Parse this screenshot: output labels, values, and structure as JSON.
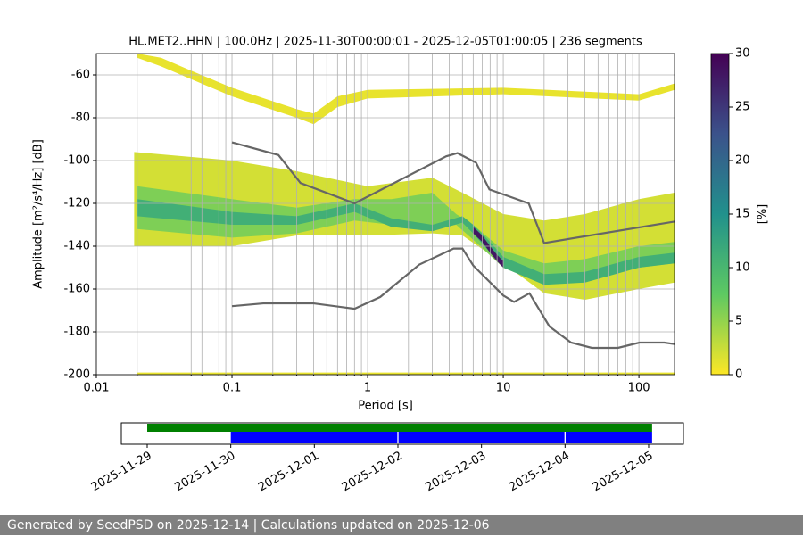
{
  "chart_data": [
    {
      "type": "ppsd",
      "title": "HL.MET2..HHN | 100.0Hz | 2025-11-30T00:00:01 - 2025-12-05T01:00:05 | 236 segments",
      "xlabel": "Period [s]",
      "ylabel": "Amplitude [m²/s⁴/Hz] [dB]",
      "log_x": true,
      "grid": true,
      "xlim": [
        0.01,
        183
      ],
      "ylim": [
        -200,
        -50
      ],
      "xticks": [
        0.01,
        0.1,
        1,
        10,
        100
      ],
      "xminorticks": [
        0.02,
        0.03,
        0.04,
        0.05,
        0.06,
        0.07,
        0.08,
        0.09,
        0.2,
        0.3,
        0.4,
        0.5,
        0.6,
        0.7,
        0.8,
        0.9,
        2,
        3,
        4,
        5,
        6,
        7,
        8,
        9,
        20,
        30,
        40,
        50,
        60,
        70,
        80,
        90
      ],
      "yticks": [
        -200,
        -180,
        -160,
        -140,
        -120,
        -100,
        -80,
        -60
      ],
      "colorbar": {
        "label": "[%]",
        "clim": [
          0,
          30
        ],
        "ticks": [
          0,
          5,
          10,
          15,
          20,
          25,
          30
        ],
        "colormap": [
          "#fde725",
          "#5ec962",
          "#21918c",
          "#3b528b",
          "#440154"
        ]
      },
      "bands": [
        {
          "percent": 1,
          "x": [
            0.02,
            0.03,
            0.05,
            0.1,
            0.3,
            0.4,
            0.6,
            1,
            10,
            100,
            183
          ],
          "low": [
            -52,
            -56,
            -62,
            -70,
            -80,
            -83,
            -75,
            -71,
            -69,
            -72,
            -67
          ],
          "high": [
            -50,
            -52,
            -58,
            -66,
            -76,
            -78,
            -70,
            -67,
            -66,
            -69,
            -64
          ]
        },
        {
          "percent": 1,
          "x": [
            0.02,
            183
          ],
          "low": [
            -200,
            -200
          ],
          "high": [
            -199,
            -199
          ]
        },
        {
          "percent": 2,
          "x": [
            0.019,
            0.1,
            0.3,
            1,
            3,
            5,
            10,
            20,
            40,
            100,
            183
          ],
          "low": [
            -140,
            -140,
            -135,
            -135,
            -134,
            -135,
            -148,
            -162,
            -165,
            -160,
            -157
          ],
          "high": [
            -96,
            -100,
            -105,
            -112,
            -108,
            -115,
            -125,
            -128,
            -125,
            -118,
            -115
          ]
        },
        {
          "percent": 6,
          "x": [
            0.02,
            0.1,
            0.3,
            0.8,
            1.5,
            3,
            4.5,
            6,
            10,
            20,
            40,
            100,
            183
          ],
          "low": [
            -132,
            -136,
            -134,
            -128,
            -130,
            -132,
            -130,
            -137,
            -150,
            -158,
            -156,
            -150,
            -148
          ],
          "high": [
            -112,
            -118,
            -122,
            -118,
            -118,
            -115,
            -125,
            -130,
            -142,
            -148,
            -146,
            -140,
            -138
          ]
        },
        {
          "percent": 11,
          "x": [
            0.02,
            0.1,
            0.3,
            0.8,
            1.5,
            3,
            5,
            6,
            8,
            10,
            20,
            40,
            100,
            183
          ],
          "low": [
            -126,
            -130,
            -130,
            -124,
            -131,
            -133,
            -129,
            -134,
            -143,
            -150,
            -158,
            -157,
            -150,
            -148
          ],
          "high": [
            -118,
            -124,
            -126,
            -120,
            -127,
            -130,
            -126,
            -130,
            -138,
            -145,
            -153,
            -152,
            -145,
            -143
          ]
        },
        {
          "percent": 28,
          "x": [
            6,
            7,
            8,
            9,
            10
          ],
          "low": [
            -134,
            -138,
            -143,
            -147,
            -150
          ],
          "high": [
            -131,
            -135,
            -140,
            -144,
            -147
          ]
        }
      ],
      "series": [
        {
          "color": "#666666",
          "x": [
            0.1,
            0.17,
            0.4,
            0.8,
            1.24,
            2.4,
            4.3,
            5.0,
            6.0,
            10,
            12,
            15.6,
            21.9,
            31.6,
            45,
            70,
            101,
            154,
            183
          ],
          "values": [
            -168,
            -166.7,
            -166.7,
            -169.2,
            -163.7,
            -148.6,
            -141.1,
            -141.1,
            -149,
            -163,
            -166,
            -162,
            -177.5,
            -185,
            -187.5,
            -187.5,
            -185,
            -185,
            -185.7
          ]
        },
        {
          "color": "#666666",
          "x": [
            0.1,
            0.22,
            0.32,
            0.8,
            3.8,
            4.6,
            6.3,
            7.9,
            15.4,
            20,
            183
          ],
          "values": [
            -91.5,
            -97.4,
            -110.5,
            -120,
            -98,
            -96.5,
            -101,
            -113.5,
            -120,
            -138.5,
            -128.5
          ]
        }
      ]
    },
    {
      "type": "timeline",
      "xlim": [
        "2025-11-28T16:34:00Z",
        "2025-12-05T10:00:00Z"
      ],
      "xticks": [
        "2025-11-29",
        "2025-11-30",
        "2025-12-01",
        "2025-12-02",
        "2025-12-03",
        "2025-12-04",
        "2025-12-05"
      ],
      "spans": [
        {
          "color": "#008000",
          "row": 0,
          "values": [
            [
              "2025-11-29T00:00:00Z",
              "2025-12-05T01:00:05Z"
            ]
          ]
        },
        {
          "color": "#0000ff",
          "row": 1,
          "values": [
            [
              "2025-11-30T00:00:01Z",
              "2025-12-01T23:50:00Z"
            ],
            [
              "2025-12-02T00:10:00Z",
              "2025-12-03T23:50:00Z"
            ],
            [
              "2025-12-04T00:10:00Z",
              "2025-12-05T01:00:05Z"
            ]
          ]
        }
      ]
    }
  ],
  "footer": "Generated by SeedPSD on 2025-12-14 | Calculations updated on 2025-12-06"
}
